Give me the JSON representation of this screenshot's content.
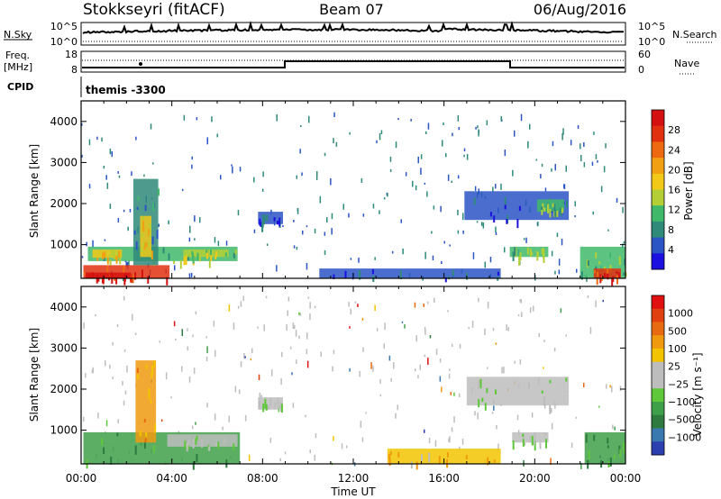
{
  "header": {
    "title": "Stokkseyri (fitACF)",
    "beam": "Beam 07",
    "date": "06/Aug/2016"
  },
  "top_panels": {
    "nsky_label": "N.Sky",
    "nsky_tick_top": "10^5",
    "nsky_tick_bottom": "10^0",
    "nsearch_label": "N.Search",
    "nsearch_tick_top": "10^5",
    "nsearch_tick_bottom": "10^0",
    "freq_label_line1": "Freq.",
    "freq_label_line2": "[MHz]",
    "freq_ticks": [
      "18",
      "8"
    ],
    "nave_label": "Nave",
    "nave_ticks": [
      "60",
      "0"
    ],
    "cpid_label": "CPID",
    "cpid_value": "themis -3300"
  },
  "chart_data": [
    {
      "type": "heatmap",
      "name": "power",
      "ylabel": "Slant Range [km]",
      "yticks": [
        "1000",
        "2000",
        "3000",
        "4000"
      ],
      "ylim": [
        180,
        4500
      ],
      "colorbar": {
        "label": "Power [dB]",
        "ticks": [
          "4",
          "8",
          "12",
          "16",
          "20",
          "24",
          "28"
        ],
        "colors": [
          "#1c10e0",
          "#2b55c5",
          "#2f8a7a",
          "#3fb86a",
          "#b4cf36",
          "#f2c918",
          "#f0a012",
          "#ee6a12",
          "#e03010",
          "#d41010"
        ]
      },
      "regions": [
        {
          "t0": 0.1,
          "t1": 3.9,
          "r0": 180,
          "r1": 500,
          "level": 8
        },
        {
          "t0": 0.2,
          "t1": 2.2,
          "r0": 180,
          "r1": 320,
          "level": 9
        },
        {
          "t0": 0.3,
          "t1": 6.9,
          "r0": 600,
          "r1": 950,
          "level": 3
        },
        {
          "t0": 0.5,
          "t1": 1.8,
          "r0": 680,
          "r1": 880,
          "level": 5
        },
        {
          "t0": 4.5,
          "t1": 6.5,
          "r0": 700,
          "r1": 880,
          "level": 4
        },
        {
          "t0": 2.3,
          "t1": 3.4,
          "r0": 500,
          "r1": 2600,
          "level": 2
        },
        {
          "t0": 2.6,
          "t1": 3.1,
          "r0": 700,
          "r1": 1700,
          "level": 5
        },
        {
          "t0": 7.8,
          "t1": 8.9,
          "r0": 1500,
          "r1": 1800,
          "level": 1
        },
        {
          "t0": 10.5,
          "t1": 18.5,
          "r0": 180,
          "r1": 420,
          "level": 1
        },
        {
          "t0": 16.9,
          "t1": 21.5,
          "r0": 1600,
          "r1": 2300,
          "level": 1
        },
        {
          "t0": 20.1,
          "t1": 21.3,
          "r0": 1800,
          "r1": 2100,
          "level": 3
        },
        {
          "t0": 18.9,
          "t1": 20.6,
          "r0": 700,
          "r1": 950,
          "level": 3
        },
        {
          "t0": 22.0,
          "t1": 24.0,
          "r0": 180,
          "r1": 950,
          "level": 3
        },
        {
          "t0": 22.6,
          "t1": 23.8,
          "r0": 180,
          "r1": 420,
          "level": 8
        }
      ]
    },
    {
      "type": "heatmap",
      "name": "velocity",
      "ylabel": "Slant Range [km]",
      "yticks": [
        "1000",
        "2000",
        "3000",
        "4000"
      ],
      "ylim": [
        180,
        4500
      ],
      "xlabel": "Time UT",
      "xticks": [
        "00:00",
        "04:00",
        "08:00",
        "12:00",
        "16:00",
        "20:00",
        "00:00"
      ],
      "xlim": [
        0,
        24
      ],
      "colorbar": {
        "label": "Velocity [m s⁻¹]",
        "ticks": [
          "1000",
          "500",
          "100",
          "25",
          "−25",
          "−100",
          "−500",
          "−1000"
        ],
        "colors": [
          "#2b3fae",
          "#3a78b0",
          "#2f7a3f",
          "#3fa04a",
          "#5fc83a",
          "#bdbdbd",
          "#bdbdbd",
          "#f2c400",
          "#f09a10",
          "#e86a10",
          "#e04010",
          "#e01010"
        ]
      },
      "regions": [
        {
          "t0": 0.1,
          "t1": 7.0,
          "r0": 180,
          "r1": 950,
          "level": 3
        },
        {
          "t0": 3.8,
          "t1": 6.9,
          "r0": 600,
          "r1": 900,
          "level": 5
        },
        {
          "t0": 2.4,
          "t1": 3.3,
          "r0": 700,
          "r1": 2700,
          "level": 8
        },
        {
          "t0": 7.8,
          "t1": 8.9,
          "r0": 1500,
          "r1": 1800,
          "level": 5
        },
        {
          "t0": 13.5,
          "t1": 18.5,
          "r0": 180,
          "r1": 550,
          "level": 7
        },
        {
          "t0": 17.0,
          "t1": 21.5,
          "r0": 1600,
          "r1": 2300,
          "level": 5
        },
        {
          "t0": 19.0,
          "t1": 20.6,
          "r0": 700,
          "r1": 950,
          "level": 5
        },
        {
          "t0": 22.2,
          "t1": 24.0,
          "r0": 180,
          "r1": 950,
          "level": 3
        }
      ]
    }
  ]
}
